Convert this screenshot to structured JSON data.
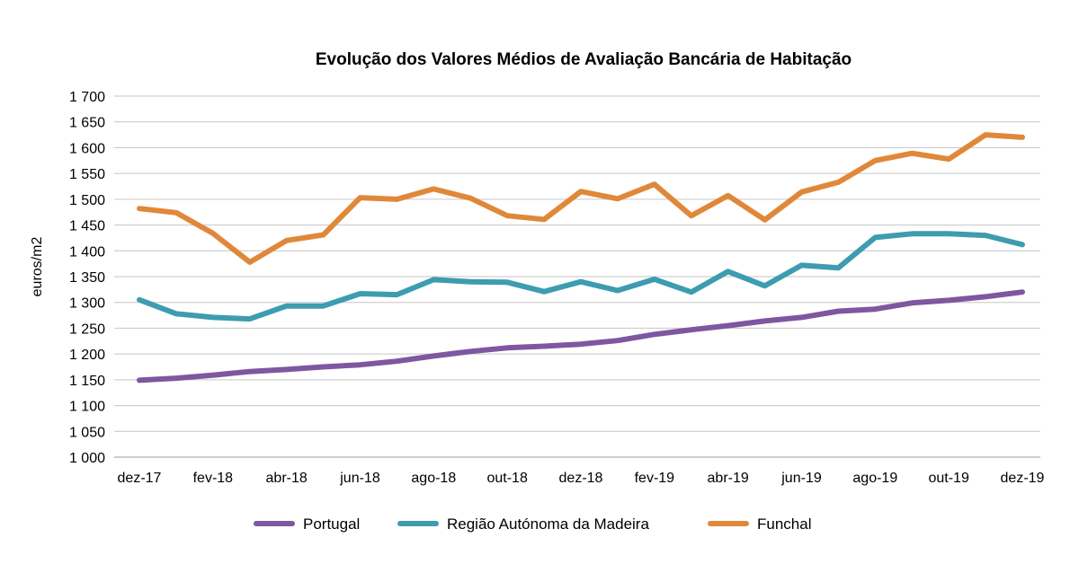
{
  "chart_data": {
    "type": "line",
    "title": "Evolução dos Valores Médios de Avaliação Bancária de Habitação",
    "ylabel": "euros/m2",
    "xlabel": "",
    "ylim": [
      1000,
      1700
    ],
    "ytick_step": 50,
    "yticks": [
      "1 000",
      "1 050",
      "1 100",
      "1 150",
      "1 200",
      "1 250",
      "1 300",
      "1 350",
      "1 400",
      "1 450",
      "1 500",
      "1 550",
      "1 600",
      "1 650",
      "1 700"
    ],
    "categories": [
      "dez-17",
      "jan-18",
      "fev-18",
      "mar-18",
      "abr-18",
      "mai-18",
      "jun-18",
      "jul-18",
      "ago-18",
      "set-18",
      "out-18",
      "nov-18",
      "dez-18",
      "jan-19",
      "fev-19",
      "mar-19",
      "abr-19",
      "mai-19",
      "jun-19",
      "jul-19",
      "ago-19",
      "set-19",
      "out-19",
      "nov-19",
      "dez-19"
    ],
    "xticks": [
      "dez-17",
      "fev-18",
      "abr-18",
      "jun-18",
      "ago-18",
      "out-18",
      "dez-18",
      "fev-19",
      "abr-19",
      "jun-19",
      "ago-19",
      "out-19",
      "dez-19"
    ],
    "grid": true,
    "legend_position": "bottom",
    "series": [
      {
        "name": "Portugal",
        "color": "#7E57A0",
        "values": [
          1149,
          1153,
          1159,
          1166,
          1170,
          1175,
          1179,
          1186,
          1196,
          1205,
          1212,
          1215,
          1219,
          1226,
          1238,
          1247,
          1255,
          1264,
          1271,
          1283,
          1287,
          1299,
          1304,
          1311,
          1320
        ]
      },
      {
        "name": "Região Autónoma da Madeira",
        "color": "#3D9CB0",
        "values": [
          1305,
          1278,
          1271,
          1268,
          1293,
          1293,
          1317,
          1315,
          1344,
          1340,
          1339,
          1321,
          1340,
          1323,
          1345,
          1320,
          1360,
          1332,
          1372,
          1367,
          1426,
          1433,
          1433,
          1430,
          1412
        ]
      },
      {
        "name": "Funchal",
        "color": "#E0883A",
        "values": [
          1482,
          1474,
          1434,
          1378,
          1420,
          1431,
          1503,
          1500,
          1520,
          1502,
          1468,
          1461,
          1515,
          1501,
          1529,
          1468,
          1507,
          1460,
          1514,
          1533,
          1575,
          1589,
          1578,
          1625,
          1620
        ]
      }
    ]
  }
}
